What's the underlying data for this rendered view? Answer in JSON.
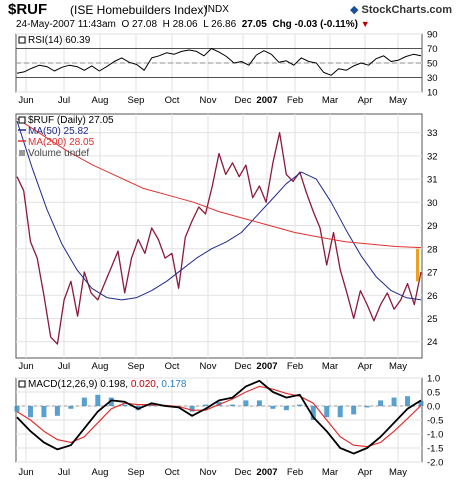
{
  "header": {
    "symbol": "$RUF",
    "name": "(ISE Homebuilders Index)",
    "exchange": "INDX",
    "logo": "StockCharts.com",
    "date": "24-May-2007 11:43am",
    "open": "O 27.08",
    "high": "H 28.06",
    "low": "L 26.86",
    "close": "27.05",
    "chg": "Chg -0.03 (-0.11%)"
  },
  "chart_data": [
    {
      "type": "line",
      "panel": "rsi",
      "legend": "RSI(14) 60.39",
      "y_ticks": [
        "90",
        "70",
        "50",
        "30",
        "10"
      ],
      "ylim": [
        10,
        90
      ],
      "ref_lines": [
        70,
        30
      ],
      "x_labels": [
        "Jun",
        "Jul",
        "Aug",
        "Sep",
        "Oct",
        "Nov",
        "Dec",
        "2007",
        "Feb",
        "Mar",
        "Apr",
        "May"
      ],
      "values": [
        36,
        38,
        43,
        47,
        45,
        39,
        44,
        47,
        45,
        40,
        46,
        39,
        45,
        52,
        57,
        51,
        48,
        40,
        57,
        60,
        64,
        62,
        66,
        68,
        66,
        60,
        70,
        65,
        59,
        50,
        52,
        47,
        61,
        67,
        62,
        51,
        53,
        47,
        57,
        52,
        50,
        37,
        33,
        42,
        40,
        46,
        50,
        47,
        56,
        60,
        52,
        54,
        59,
        62,
        60
      ]
    },
    {
      "type": "line",
      "panel": "price",
      "title": "$RUF (Daily) 27.05",
      "y_ticks": [
        "33",
        "32",
        "31",
        "30",
        "29",
        "28",
        "27",
        "26",
        "25",
        "24"
      ],
      "ylim": [
        23.3,
        33.8
      ],
      "x_labels": [
        "Jun",
        "Jul",
        "Aug",
        "Sep",
        "Oct",
        "Nov",
        "Dec",
        "2007",
        "Feb",
        "Mar",
        "Apr",
        "May"
      ],
      "series": [
        {
          "name": "$RUF (Daily) 27.05",
          "color": "#8b1a3c",
          "values": [
            31.1,
            30.5,
            28.3,
            27.6,
            26.0,
            24.2,
            23.9,
            25.8,
            26.6,
            25.1,
            27.0,
            26.1,
            25.8,
            26.5,
            27.2,
            27.9,
            26.1,
            27.6,
            28.4,
            27.8,
            28.9,
            28.4,
            27.6,
            27.8,
            26.3,
            28.5,
            29.2,
            29.8,
            29.5,
            30.7,
            32.1,
            31.2,
            31.7,
            31.1,
            31.6,
            30.2,
            30.7,
            30.0,
            31.7,
            33.0,
            31.2,
            30.9,
            31.3,
            30.4,
            29.6,
            28.9,
            27.3,
            28.7,
            27.1,
            26.1,
            25.0,
            26.2,
            25.6,
            24.9,
            25.6,
            26.1,
            25.4,
            25.8,
            26.5,
            25.6,
            27.0
          ]
        },
        {
          "name": "MA(50) 25.82",
          "color": "#1f2a8c",
          "values": [
            33.5,
            31.5,
            29.7,
            28.2,
            27.1,
            26.3,
            25.9,
            25.8,
            25.9,
            26.2,
            26.6,
            27.1,
            27.6,
            28.0,
            28.3,
            28.7,
            29.4,
            30.1,
            30.8,
            31.3,
            31.0,
            30.0,
            28.8,
            27.7,
            26.8,
            26.2,
            25.9,
            25.8
          ]
        },
        {
          "name": "MA(200) 28.05",
          "color": "#e03030",
          "values": [
            33.6,
            32.9,
            32.2,
            31.6,
            31.1,
            30.6,
            30.3,
            30.0,
            29.6,
            29.3,
            29.0,
            28.7,
            28.5,
            28.3,
            28.2,
            28.1,
            28.05
          ]
        }
      ],
      "legend_extra": "Volume undef"
    },
    {
      "type": "line",
      "panel": "macd",
      "legend": "MACD(12,26,9) 0.198, 0.020, 0.178",
      "legend_parts": [
        "MACD(12,26,9)",
        "0.198,",
        "0.020,",
        "0.178"
      ],
      "y_ticks": [
        "1.0",
        "0.5",
        "0.0",
        "-0.5",
        "-1.0",
        "-1.5",
        "-2.0"
      ],
      "ylim": [
        -2.0,
        1.0
      ],
      "x_labels": [
        "Jun",
        "Jul",
        "Aug",
        "Sep",
        "Oct",
        "Nov",
        "Dec",
        "2007",
        "Feb",
        "Mar",
        "Apr",
        "May"
      ],
      "series": [
        {
          "name": "MACD(12,26,9) 0.198",
          "color": "#000000",
          "values": [
            -0.4,
            -0.9,
            -1.3,
            -1.55,
            -1.4,
            -0.8,
            -0.2,
            0.2,
            0.15,
            -0.1,
            0.1,
            0.0,
            -0.05,
            -0.35,
            -0.1,
            0.2,
            0.3,
            0.7,
            0.9,
            0.5,
            0.3,
            0.4,
            -0.4,
            -0.9,
            -1.5,
            -1.7,
            -1.5,
            -1.1,
            -0.6,
            -0.1,
            0.2
          ]
        },
        {
          "name": "0.020",
          "color": "#e03030",
          "values": [
            -0.2,
            -0.5,
            -0.9,
            -1.2,
            -1.3,
            -1.1,
            -0.6,
            -0.1,
            0.1,
            0.05,
            0.05,
            0.02,
            -0.02,
            -0.15,
            -0.15,
            0.05,
            0.25,
            0.5,
            0.7,
            0.6,
            0.45,
            0.35,
            0.1,
            -0.5,
            -1.1,
            -1.4,
            -1.45,
            -1.3,
            -0.9,
            -0.45,
            0.02
          ]
        },
        {
          "name": "0.178",
          "color": "#3a8fc8",
          "type": "histogram",
          "values": [
            -0.2,
            -0.4,
            -0.4,
            -0.35,
            -0.1,
            0.3,
            0.4,
            0.3,
            0.05,
            -0.15,
            0.05,
            -0.02,
            -0.03,
            -0.2,
            0.05,
            0.15,
            0.05,
            0.2,
            0.2,
            -0.1,
            -0.15,
            0.05,
            -0.5,
            -0.4,
            -0.4,
            -0.3,
            -0.05,
            0.2,
            0.3,
            0.35,
            0.18
          ]
        }
      ]
    }
  ]
}
